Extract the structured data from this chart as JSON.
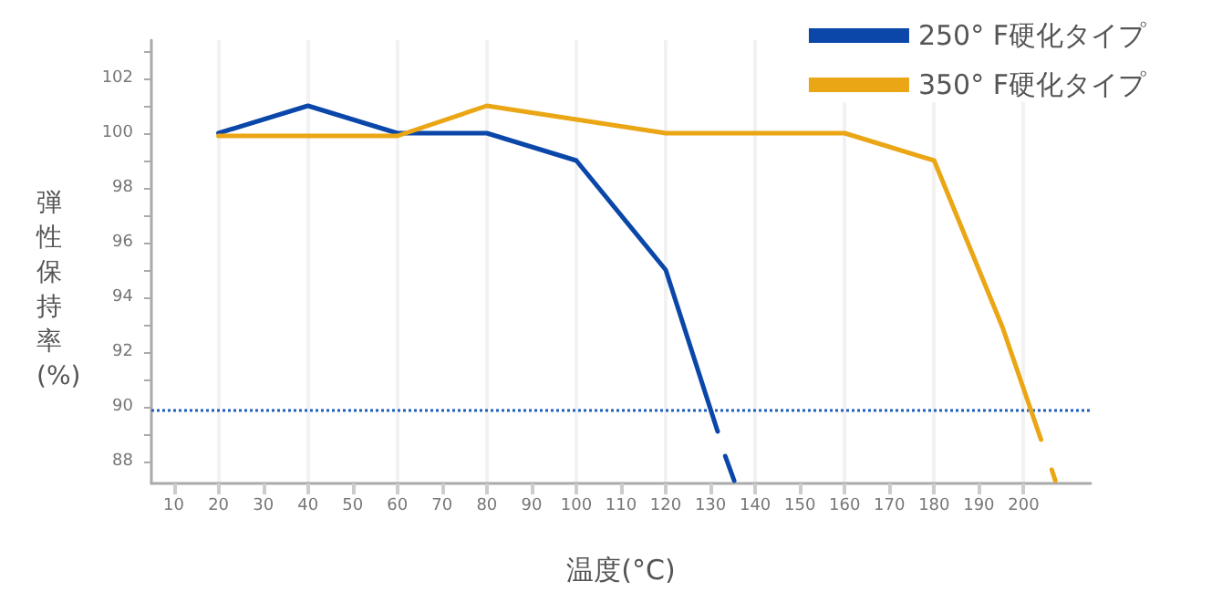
{
  "chart_data": {
    "type": "line",
    "xlabel": "温度(°C)",
    "ylabel": "弾性保持率(%)",
    "xlim": [
      5,
      215
    ],
    "xticks": [
      10,
      20,
      30,
      40,
      50,
      60,
      70,
      80,
      90,
      100,
      110,
      120,
      130,
      140,
      150,
      160,
      170,
      180,
      190,
      200
    ],
    "ylim": [
      87.2,
      103.4
    ],
    "yticks": [
      88,
      {
        "value": 89,
        "label": null
      },
      90,
      {
        "value": 91,
        "label": null
      },
      92,
      {
        "value": 93,
        "label": null
      },
      94,
      {
        "value": 95,
        "label": null
      },
      96,
      {
        "value": 97,
        "label": null
      },
      98,
      {
        "value": 99,
        "label": null
      },
      100,
      {
        "value": 101,
        "label": null
      },
      102,
      {
        "value": 103,
        "label": null
      }
    ],
    "series": [
      {
        "name": "250° F硬化タイプ",
        "color": "#0a47a9",
        "x": [
          20,
          40,
          60,
          80,
          100,
          120,
          131.6,
          132.5,
          133.3,
          135.3
        ],
        "values": [
          100,
          101,
          100,
          100,
          99,
          95,
          89.1,
          null,
          88.2,
          87.3
        ]
      },
      {
        "name": "350° F硬化タイプ",
        "color": "#eaa615",
        "x": [
          20,
          40,
          60,
          80,
          100,
          120,
          160,
          180,
          195.3,
          203.9,
          205,
          206.3,
          207.1
        ],
        "values": [
          99.9,
          99.9,
          99.9,
          101,
          100.5,
          100,
          100,
          99,
          92.9,
          88.8,
          null,
          87.7,
          87.3
        ]
      }
    ],
    "ref_lines": [
      {
        "axis": "y",
        "value": 89.9,
        "color": "#1f5fbf",
        "line_style": "dotted"
      }
    ],
    "grid": "x",
    "legend": "top right",
    "marker": "none",
    "line_style": "solid"
  }
}
